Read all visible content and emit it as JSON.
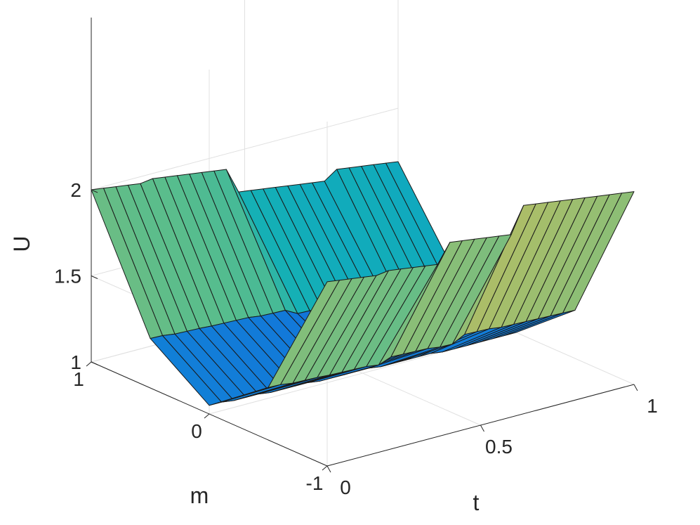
{
  "chart_data": {
    "type": "surface",
    "title": "",
    "xlabel": "t",
    "ylabel": "m",
    "zlabel": "U",
    "xlim": [
      0,
      1
    ],
    "ylim": [
      -1,
      1
    ],
    "zlim": [
      1,
      2.5
    ],
    "xticks": [
      0,
      0.5,
      1
    ],
    "xtick_labels": [
      "0",
      "0.5",
      "1"
    ],
    "yticks": [
      -1,
      0,
      1
    ],
    "ytick_labels": [
      "-1",
      "0",
      "1"
    ],
    "zticks": [
      1,
      1.5,
      2
    ],
    "ztick_labels": [
      "1",
      "1.5",
      "2"
    ],
    "grid": true,
    "colormap": "parula",
    "color_range": [
      1.0,
      2.07
    ],
    "m": [
      -1,
      -0.5,
      0,
      0.5,
      1
    ],
    "t": [
      0,
      0.04,
      0.08,
      0.12,
      0.16,
      0.2,
      0.24,
      0.28,
      0.32,
      0.36,
      0.4,
      0.44,
      0.48,
      0.52,
      0.56,
      0.6,
      0.64,
      0.68,
      0.72,
      0.76,
      0.8,
      0.84,
      0.88,
      0.92,
      0.96,
      1.0
    ],
    "u_edge_m1": [
      2.07,
      2.06,
      2.05,
      2.04,
      2.03,
      2.04,
      2.03,
      2.02,
      2.01,
      2.0,
      2.11,
      2.1,
      2.09,
      2.08,
      2.07,
      2.06,
      2.21,
      2.2,
      2.19,
      2.18,
      2.17,
      2.16,
      2.15,
      2.14,
      2.13,
      2.12
    ],
    "u_edge_p1": [
      2.0,
      1.99,
      1.98,
      1.97,
      1.96,
      1.97,
      1.96,
      1.95,
      1.94,
      1.93,
      1.92,
      1.91,
      1.76,
      1.75,
      1.74,
      1.73,
      1.72,
      1.71,
      1.7,
      1.69,
      1.74,
      1.73,
      1.72,
      1.71,
      1.7,
      1.69
    ],
    "u_center": [
      1.05,
      1.05,
      1.04,
      1.04,
      1.04,
      1.03,
      1.03,
      1.03,
      1.03,
      1.02,
      1.02,
      1.02,
      1.02,
      1.02,
      1.01,
      1.01,
      1.01,
      1.01,
      1.01,
      1.0,
      1.0,
      1.0,
      1.0,
      1.0,
      1.0,
      1.0
    ]
  }
}
